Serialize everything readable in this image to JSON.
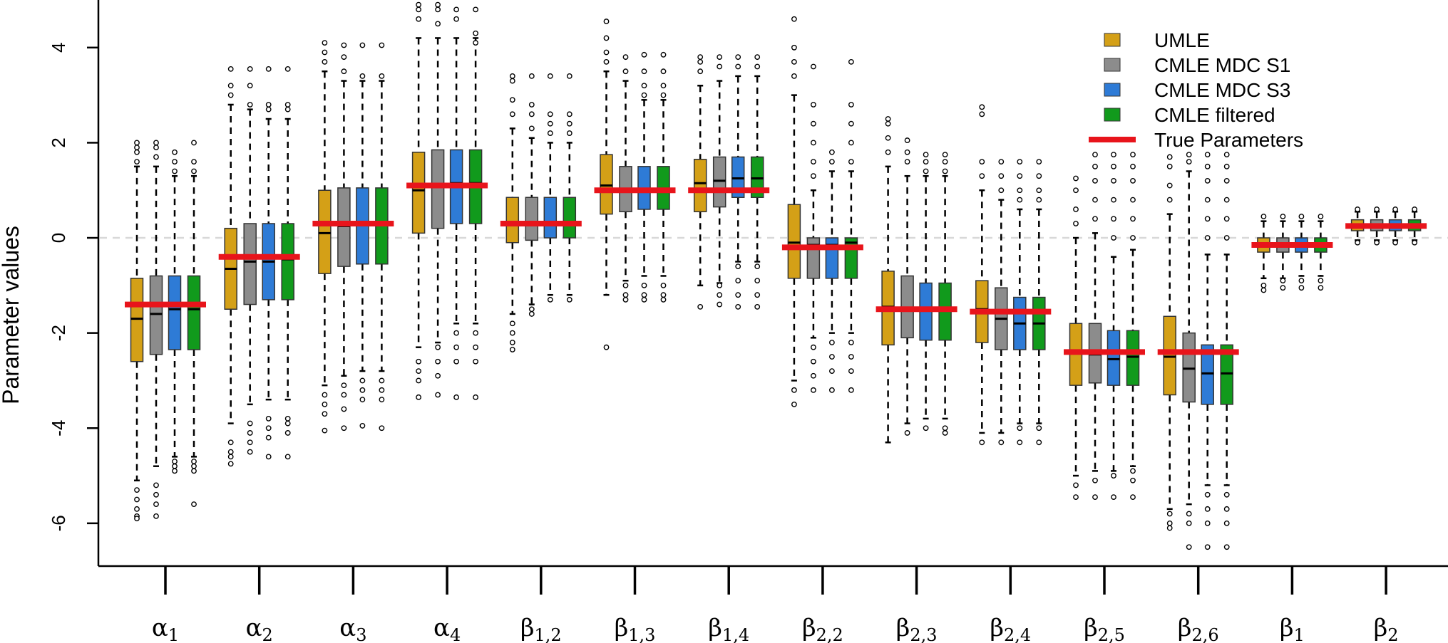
{
  "chart_data": {
    "type": "boxplot",
    "title": "",
    "xlabel": "",
    "ylabel": "Parameter values",
    "ylim": [
      -6.9,
      5.0
    ],
    "yticks": [
      -6,
      -4,
      -2,
      0,
      2,
      4
    ],
    "yticklabels": [
      "-6",
      "-4",
      "-2",
      "0",
      "2",
      "4"
    ],
    "reference_line": {
      "y": 0,
      "style": "dashed",
      "color": "#d8d8d8"
    },
    "legend": {
      "position": "top-right",
      "entries": [
        {
          "label": "UMLE",
          "color": "#D4A017",
          "kind": "box"
        },
        {
          "label": "CMLE MDC S1",
          "color": "#8C8C8C",
          "kind": "box"
        },
        {
          "label": "CMLE MDC S3",
          "color": "#2E7BD6",
          "kind": "box"
        },
        {
          "label": "CMLE filtered",
          "color": "#119A1C",
          "kind": "box"
        },
        {
          "label": "True Parameters",
          "color": "#E8141B",
          "kind": "line"
        }
      ]
    },
    "categories": [
      {
        "base": "α",
        "sub": "1"
      },
      {
        "base": "α",
        "sub": "2"
      },
      {
        "base": "α",
        "sub": "3"
      },
      {
        "base": "α",
        "sub": "4"
      },
      {
        "base": "β",
        "sub": "1,2"
      },
      {
        "base": "β",
        "sub": "1,3"
      },
      {
        "base": "β",
        "sub": "1,4"
      },
      {
        "base": "β",
        "sub": "2,2"
      },
      {
        "base": "β",
        "sub": "2,3"
      },
      {
        "base": "β",
        "sub": "2,4"
      },
      {
        "base": "β",
        "sub": "2,5"
      },
      {
        "base": "β",
        "sub": "2,6"
      },
      {
        "base": "β",
        "sub": "1"
      },
      {
        "base": "β",
        "sub": "2"
      }
    ],
    "series_colors": [
      "#D4A017",
      "#8C8C8C",
      "#2E7BD6",
      "#119A1C"
    ],
    "true_parameters": [
      -1.4,
      -0.4,
      0.3,
      1.1,
      0.3,
      1.0,
      1.0,
      -0.2,
      -1.5,
      -1.55,
      -2.4,
      -2.4,
      -0.15,
      0.25
    ],
    "groups": [
      {
        "boxes": [
          {
            "q1": -2.6,
            "med": -1.7,
            "q3": -0.85,
            "lo": -5.1,
            "hi": 1.5,
            "out": [
              1.6,
              1.8,
              1.9,
              2.0,
              -5.3,
              -5.5,
              -5.7,
              -5.85,
              -5.9
            ]
          },
          {
            "q1": -2.45,
            "med": -1.6,
            "q3": -0.8,
            "lo": -4.8,
            "hi": 1.5,
            "out": [
              1.7,
              1.9,
              2.0,
              -5.2,
              -5.4,
              -5.6,
              -5.85
            ]
          },
          {
            "q1": -2.35,
            "med": -1.5,
            "q3": -0.8,
            "lo": -4.6,
            "hi": 1.3,
            "out": [
              1.4,
              1.6,
              1.8,
              -4.7,
              -4.8,
              -4.9
            ]
          },
          {
            "q1": -2.35,
            "med": -1.5,
            "q3": -0.8,
            "lo": -4.6,
            "hi": 1.3,
            "out": [
              1.4,
              1.6,
              2.0,
              -4.7,
              -4.8,
              -4.9,
              -5.6
            ]
          }
        ]
      },
      {
        "boxes": [
          {
            "q1": -1.5,
            "med": -0.65,
            "q3": 0.2,
            "lo": -3.9,
            "hi": 2.8,
            "out": [
              3.0,
              3.2,
              3.55,
              -4.3,
              -4.5,
              -4.6,
              -4.75
            ]
          },
          {
            "q1": -1.4,
            "med": -0.5,
            "q3": 0.3,
            "lo": -3.5,
            "hi": 2.7,
            "out": [
              2.8,
              3.2,
              3.55,
              -3.9,
              -4.1,
              -4.3,
              -4.5
            ]
          },
          {
            "q1": -1.3,
            "med": -0.5,
            "q3": 0.3,
            "lo": -3.4,
            "hi": 2.5,
            "out": [
              2.7,
              2.8,
              3.55,
              -3.8,
              -4.0,
              -4.2,
              -4.6
            ]
          },
          {
            "q1": -1.3,
            "med": -0.45,
            "q3": 0.3,
            "lo": -3.4,
            "hi": 2.5,
            "out": [
              2.7,
              2.8,
              3.55,
              -3.8,
              -3.9,
              -4.1,
              -4.6
            ]
          }
        ]
      },
      {
        "boxes": [
          {
            "q1": -0.75,
            "med": 0.1,
            "q3": 1.0,
            "lo": -3.1,
            "hi": 3.5,
            "out": [
              3.7,
              3.9,
              4.1,
              -3.3,
              -3.5,
              -3.7,
              -4.05
            ]
          },
          {
            "q1": -0.6,
            "med": 0.25,
            "q3": 1.05,
            "lo": -2.9,
            "hi": 3.3,
            "out": [
              3.5,
              3.8,
              4.05,
              -3.1,
              -3.3,
              -3.6,
              -4.0
            ]
          },
          {
            "q1": -0.55,
            "med": 0.3,
            "q3": 1.05,
            "lo": -2.8,
            "hi": 3.3,
            "out": [
              3.4,
              4.05,
              -3.0,
              -3.2,
              -3.4,
              -3.95
            ]
          },
          {
            "q1": -0.55,
            "med": 0.3,
            "q3": 1.05,
            "lo": -2.8,
            "hi": 3.3,
            "out": [
              3.4,
              4.05,
              -3.0,
              -3.2,
              -3.4,
              -4.0
            ]
          }
        ]
      },
      {
        "boxes": [
          {
            "q1": 0.1,
            "med": 1.0,
            "q3": 1.8,
            "lo": -2.3,
            "hi": 4.2,
            "out": [
              4.6,
              4.8,
              4.9,
              -2.6,
              -2.8,
              -3.0,
              -3.35
            ]
          },
          {
            "q1": 0.2,
            "med": 1.1,
            "q3": 1.85,
            "lo": -2.2,
            "hi": 4.2,
            "out": [
              4.5,
              4.8,
              4.9,
              -2.3,
              -2.6,
              -2.9,
              -3.3
            ]
          },
          {
            "q1": 0.3,
            "med": 1.15,
            "q3": 1.85,
            "lo": -1.8,
            "hi": 4.2,
            "out": [
              4.6,
              4.8,
              -2.0,
              -2.3,
              -2.6,
              -3.35
            ]
          },
          {
            "q1": 0.3,
            "med": 1.15,
            "q3": 1.85,
            "lo": -1.8,
            "hi": 4.2,
            "out": [
              4.1,
              4.3,
              4.8,
              -2.0,
              -2.3,
              -2.6,
              -3.35
            ]
          }
        ]
      },
      {
        "boxes": [
          {
            "q1": -0.1,
            "med": 0.3,
            "q3": 0.85,
            "lo": -1.6,
            "hi": 2.3,
            "out": [
              2.6,
              2.9,
              3.3,
              3.4,
              -1.8,
              -2.0,
              -2.2,
              -2.35
            ]
          },
          {
            "q1": -0.05,
            "med": 0.3,
            "q3": 0.85,
            "lo": -1.4,
            "hi": 2.1,
            "out": [
              2.3,
              2.6,
              2.8,
              3.4,
              -1.5,
              -1.6
            ]
          },
          {
            "q1": 0.0,
            "med": 0.3,
            "q3": 0.85,
            "lo": -1.2,
            "hi": 2.0,
            "out": [
              2.2,
              2.4,
              2.6,
              3.4,
              -1.3
            ]
          },
          {
            "q1": 0.0,
            "med": 0.3,
            "q3": 0.85,
            "lo": -1.2,
            "hi": 2.0,
            "out": [
              2.2,
              2.4,
              2.6,
              3.4,
              -1.3
            ]
          }
        ]
      },
      {
        "boxes": [
          {
            "q1": 0.5,
            "med": 1.1,
            "q3": 1.75,
            "lo": -1.2,
            "hi": 3.5,
            "out": [
              3.7,
              3.9,
              4.2,
              4.55,
              -2.3
            ]
          },
          {
            "q1": 0.55,
            "med": 1.0,
            "q3": 1.5,
            "lo": -0.9,
            "hi": 3.3,
            "out": [
              3.5,
              3.8,
              -1.0,
              -1.2,
              -1.3
            ]
          },
          {
            "q1": 0.6,
            "med": 1.0,
            "q3": 1.5,
            "lo": -0.8,
            "hi": 2.9,
            "out": [
              3.0,
              3.2,
              3.5,
              3.85,
              -1.0,
              -1.2,
              -1.3
            ]
          },
          {
            "q1": 0.6,
            "med": 1.0,
            "q3": 1.5,
            "lo": -0.8,
            "hi": 2.9,
            "out": [
              3.0,
              3.2,
              3.5,
              3.85,
              -1.0,
              -1.2,
              -1.3
            ]
          }
        ]
      },
      {
        "boxes": [
          {
            "q1": 0.55,
            "med": 1.15,
            "q3": 1.65,
            "lo": -1.0,
            "hi": 3.2,
            "out": [
              3.5,
              3.7,
              3.8,
              -1.45
            ]
          },
          {
            "q1": 0.65,
            "med": 1.2,
            "q3": 1.7,
            "lo": -0.95,
            "hi": 3.3,
            "out": [
              3.6,
              3.8,
              -1.0,
              -1.2,
              -1.4
            ]
          },
          {
            "q1": 0.85,
            "med": 1.25,
            "q3": 1.7,
            "lo": -0.5,
            "hi": 3.4,
            "out": [
              3.6,
              3.8,
              -0.6,
              -0.9,
              -1.2,
              -1.45
            ]
          },
          {
            "q1": 0.85,
            "med": 1.25,
            "q3": 1.7,
            "lo": -0.5,
            "hi": 3.4,
            "out": [
              3.6,
              3.8,
              -0.6,
              -0.9,
              -1.2,
              -1.45
            ]
          }
        ]
      },
      {
        "boxes": [
          {
            "q1": -0.85,
            "med": -0.1,
            "q3": 0.7,
            "lo": -3.0,
            "hi": 3.0,
            "out": [
              3.4,
              3.7,
              4.0,
              4.6,
              -3.2,
              -3.5
            ]
          },
          {
            "q1": -0.85,
            "med": -0.15,
            "q3": 0.0,
            "lo": -2.1,
            "hi": 1.0,
            "out": [
              1.3,
              1.6,
              2.0,
              2.4,
              2.8,
              3.6,
              -2.3,
              -2.6,
              -2.9,
              -3.2
            ]
          },
          {
            "q1": -0.85,
            "med": -0.15,
            "q3": 0.0,
            "lo": -2.0,
            "hi": 1.4,
            "out": [
              1.6,
              1.8,
              -2.2,
              -2.5,
              -2.8,
              -3.2
            ]
          },
          {
            "q1": -0.85,
            "med": -0.1,
            "q3": 0.0,
            "lo": -2.0,
            "hi": 1.4,
            "out": [
              1.6,
              2.0,
              2.4,
              2.8,
              3.7,
              -2.2,
              -2.5,
              -2.8,
              -3.2
            ]
          }
        ]
      },
      {
        "boxes": [
          {
            "q1": -2.25,
            "med": -1.45,
            "q3": -0.7,
            "lo": -4.3,
            "hi": 1.5,
            "out": [
              1.8,
              2.1,
              2.4,
              2.5
            ]
          },
          {
            "q1": -2.1,
            "med": -1.5,
            "q3": -0.8,
            "lo": -3.9,
            "hi": 1.3,
            "out": [
              1.6,
              1.8,
              2.05,
              -4.1
            ]
          },
          {
            "q1": -2.15,
            "med": -1.5,
            "q3": -0.95,
            "lo": -3.8,
            "hi": 1.3,
            "out": [
              1.4,
              1.6,
              1.75,
              -4.0
            ]
          },
          {
            "q1": -2.15,
            "med": -1.5,
            "q3": -0.95,
            "lo": -3.8,
            "hi": 1.3,
            "out": [
              1.4,
              1.6,
              1.75,
              -4.0,
              -4.1
            ]
          }
        ]
      },
      {
        "boxes": [
          {
            "q1": -2.2,
            "med": -1.5,
            "q3": -0.9,
            "lo": -4.1,
            "hi": 1.0,
            "out": [
              1.3,
              1.6,
              2.6,
              2.75,
              -4.3
            ]
          },
          {
            "q1": -2.35,
            "med": -1.7,
            "q3": -1.05,
            "lo": -4.1,
            "hi": 0.8,
            "out": [
              1.0,
              1.3,
              1.6,
              -4.3
            ]
          },
          {
            "q1": -2.35,
            "med": -1.8,
            "q3": -1.25,
            "lo": -3.9,
            "hi": 0.6,
            "out": [
              0.8,
              1.0,
              1.3,
              1.6,
              -4.0,
              -4.3
            ]
          },
          {
            "q1": -2.35,
            "med": -1.8,
            "q3": -1.25,
            "lo": -3.9,
            "hi": 0.6,
            "out": [
              0.8,
              1.0,
              1.3,
              1.6,
              -4.0,
              -4.3
            ]
          }
        ]
      },
      {
        "boxes": [
          {
            "q1": -3.1,
            "med": -2.4,
            "q3": -1.8,
            "lo": -5.0,
            "hi": 0.0,
            "out": [
              0.3,
              0.6,
              1.0,
              1.25,
              -5.2,
              -5.45
            ]
          },
          {
            "q1": -3.05,
            "med": -2.45,
            "q3": -1.8,
            "lo": -4.9,
            "hi": 0.1,
            "out": [
              0.4,
              0.8,
              1.2,
              1.5,
              1.75,
              -5.1,
              -5.45
            ]
          },
          {
            "q1": -3.1,
            "med": -2.55,
            "q3": -1.95,
            "lo": -4.9,
            "hi": -0.4,
            "out": [
              0.0,
              0.4,
              0.8,
              1.2,
              1.5,
              1.75,
              -5.0,
              -5.45
            ]
          },
          {
            "q1": -3.1,
            "med": -2.5,
            "q3": -1.95,
            "lo": -4.8,
            "hi": -0.25,
            "out": [
              0.0,
              0.4,
              0.8,
              1.2,
              1.5,
              1.75,
              -4.9,
              -5.1,
              -5.45
            ]
          }
        ]
      },
      {
        "boxes": [
          {
            "q1": -3.3,
            "med": -2.5,
            "q3": -1.65,
            "lo": -5.7,
            "hi": 0.5,
            "out": [
              0.8,
              1.1,
              1.5,
              1.7,
              -5.8,
              -6.0,
              -6.1
            ]
          },
          {
            "q1": -3.45,
            "med": -2.75,
            "q3": -2.0,
            "lo": -5.6,
            "hi": 1.4,
            "out": [
              1.6,
              1.75,
              -5.8,
              -6.0,
              -6.5
            ]
          },
          {
            "q1": -3.5,
            "med": -2.85,
            "q3": -2.25,
            "lo": -5.2,
            "hi": -0.35,
            "out": [
              0.0,
              0.4,
              0.8,
              1.2,
              1.5,
              1.75,
              -5.4,
              -5.7,
              -6.0,
              -6.5
            ]
          },
          {
            "q1": -3.5,
            "med": -2.85,
            "q3": -2.25,
            "lo": -5.2,
            "hi": -0.35,
            "out": [
              0.0,
              0.4,
              0.8,
              1.2,
              1.5,
              1.75,
              -5.4,
              -5.7,
              -6.0,
              -6.5
            ]
          }
        ]
      },
      {
        "boxes": [
          {
            "q1": -0.3,
            "med": -0.15,
            "q3": 0.0,
            "lo": -0.85,
            "hi": 0.35,
            "out": [
              0.45,
              -1.0,
              -1.1
            ]
          },
          {
            "q1": -0.3,
            "med": -0.15,
            "q3": 0.0,
            "lo": -0.85,
            "hi": 0.35,
            "out": [
              0.45,
              -0.9,
              -1.05
            ]
          },
          {
            "q1": -0.3,
            "med": -0.15,
            "q3": 0.0,
            "lo": -0.8,
            "hi": 0.35,
            "out": [
              0.45,
              -0.9,
              -1.05
            ]
          },
          {
            "q1": -0.3,
            "med": -0.15,
            "q3": 0.0,
            "lo": -0.8,
            "hi": 0.35,
            "out": [
              0.45,
              -0.9,
              -1.05
            ]
          }
        ]
      },
      {
        "boxes": [
          {
            "q1": 0.15,
            "med": 0.25,
            "q3": 0.38,
            "lo": -0.05,
            "hi": 0.55,
            "out": [
              0.6,
              -0.1
            ]
          },
          {
            "q1": 0.15,
            "med": 0.25,
            "q3": 0.38,
            "lo": -0.05,
            "hi": 0.55,
            "out": [
              0.6,
              -0.1
            ]
          },
          {
            "q1": 0.15,
            "med": 0.25,
            "q3": 0.38,
            "lo": -0.05,
            "hi": 0.55,
            "out": [
              0.6,
              -0.1
            ]
          },
          {
            "q1": 0.15,
            "med": 0.25,
            "q3": 0.38,
            "lo": -0.05,
            "hi": 0.55,
            "out": [
              0.6,
              -0.1
            ]
          }
        ]
      }
    ]
  }
}
